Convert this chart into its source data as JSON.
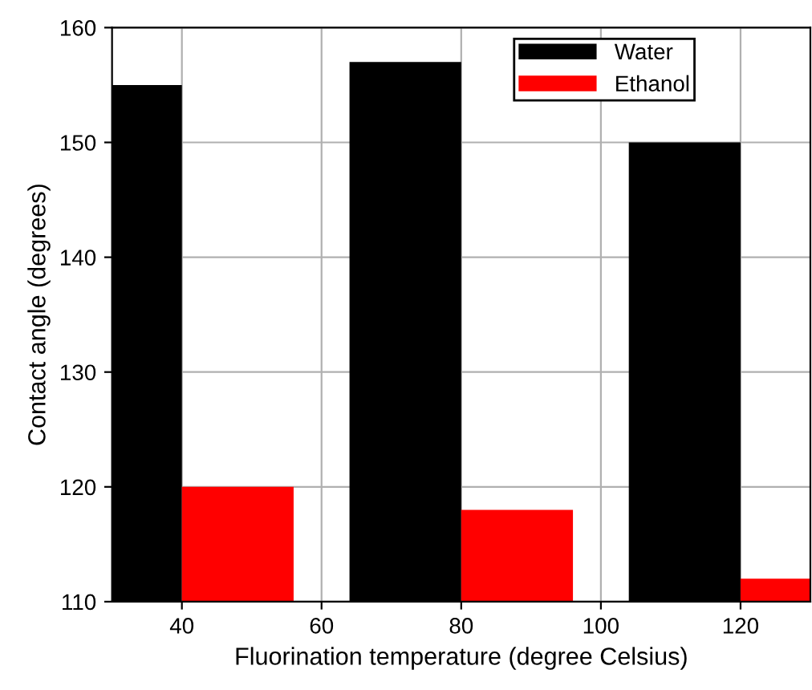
{
  "chart_data": {
    "type": "bar",
    "xlabel": "Fluorination temperature (degree Celsius)",
    "ylabel": "Contact angle (degrees)",
    "series": [
      {
        "name": "Water",
        "color": "#000000",
        "x": [
          32,
          72,
          112
        ],
        "values": [
          155,
          157,
          150
        ]
      },
      {
        "name": "Ethanol",
        "color": "#ff0000",
        "x": [
          48,
          88,
          128
        ],
        "values": [
          120,
          118,
          112
        ]
      }
    ],
    "xlim": [
      30,
      130
    ],
    "xticks": [
      40,
      60,
      80,
      100,
      120
    ],
    "ylim": [
      110,
      160
    ],
    "yticks": [
      110,
      120,
      130,
      140,
      150,
      160
    ],
    "grid": true,
    "legend": "top right"
  }
}
